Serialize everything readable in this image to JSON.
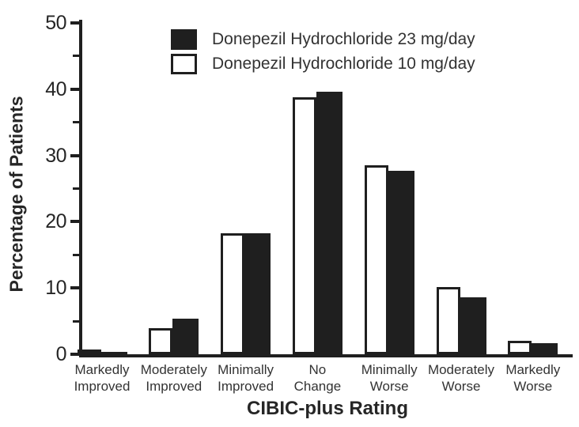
{
  "chart_data": {
    "type": "bar",
    "title": "",
    "xlabel": "CIBIC-plus Rating",
    "ylabel": "Percentage of Patients",
    "ylim": [
      0,
      50
    ],
    "y_major_ticks": [
      0,
      10,
      20,
      30,
      40,
      50
    ],
    "y_minor_ticks": [
      5,
      15,
      25,
      35,
      45
    ],
    "grid": false,
    "legend_position": "top-left-inside",
    "categories": [
      "Markedly Improved",
      "Moderately Improved",
      "Minimally Improved",
      "No Change",
      "Minimally Worse",
      "Moderately Worse",
      "Markedly Worse"
    ],
    "category_label_lines": [
      [
        "Markedly",
        "Improved"
      ],
      [
        "Moderately",
        "Improved"
      ],
      [
        "Minimally",
        "Improved"
      ],
      [
        "No",
        "Change"
      ],
      [
        "Minimally",
        "Worse"
      ],
      [
        "Moderately",
        "Worse"
      ],
      [
        "Markedly",
        "Worse"
      ]
    ],
    "series": [
      {
        "name": "Donepezil Hydrochloride 23 mg/day",
        "style": "filled",
        "fill": "#1f1f1f",
        "values": [
          0.4,
          5.4,
          18.3,
          39.6,
          27.7,
          8.6,
          1.7
        ]
      },
      {
        "name": "Donepezil Hydrochloride 10 mg/day",
        "style": "outlined",
        "fill": "#ffffff",
        "outline": "#1f1f1f",
        "values": [
          0.6,
          3.9,
          18.2,
          38.8,
          28.5,
          10.1,
          2.0
        ]
      }
    ],
    "pair_draw_order": [
      1,
      0
    ]
  },
  "colors": {
    "ink": "#1f1f1f",
    "text": "#333333",
    "background": "#ffffff"
  }
}
